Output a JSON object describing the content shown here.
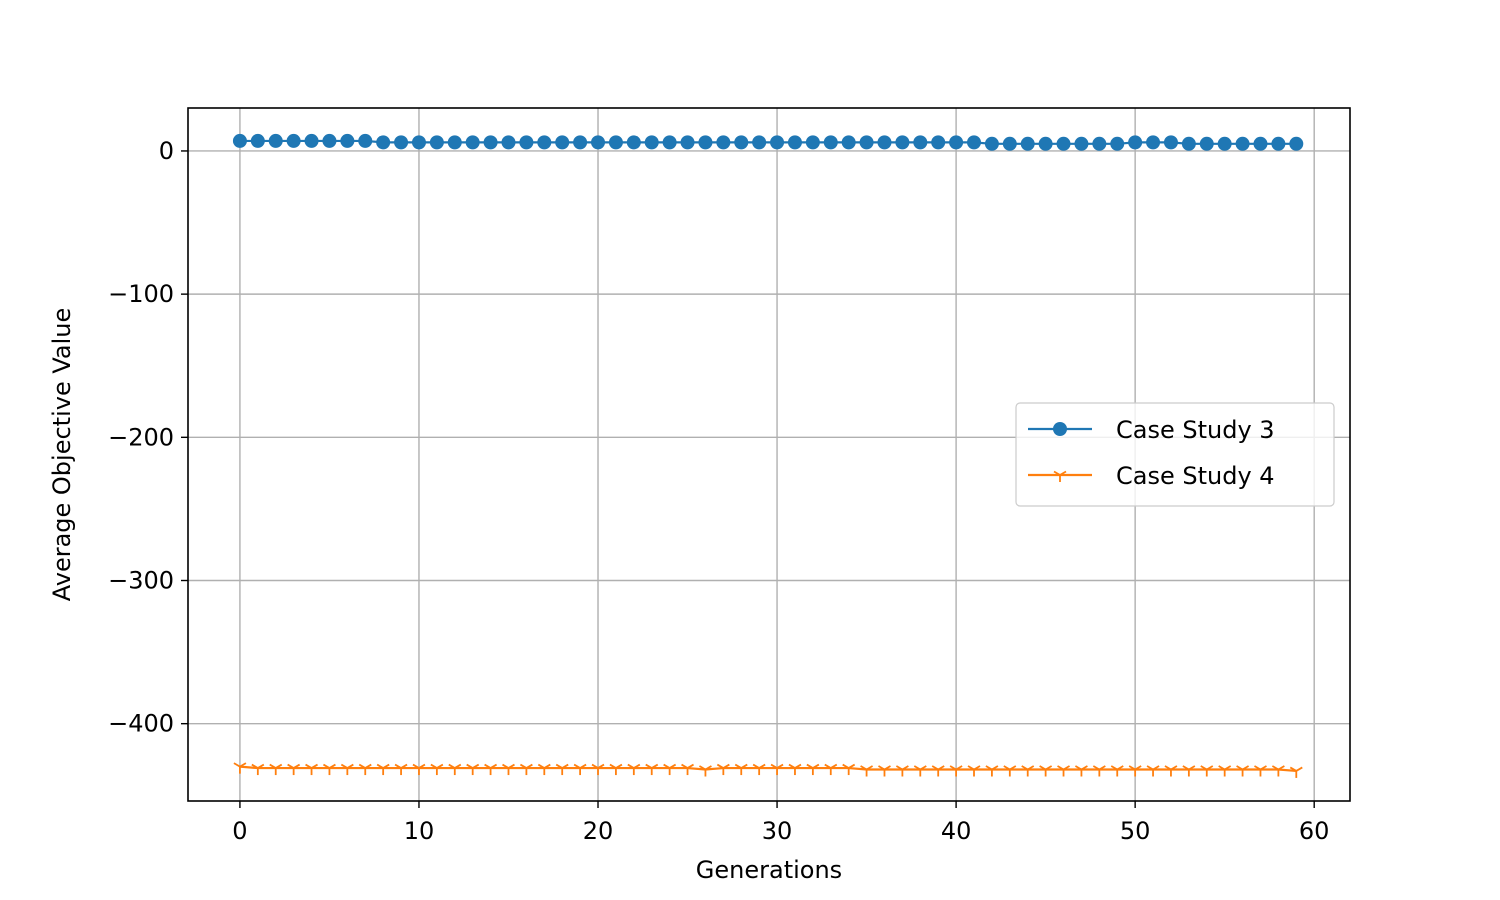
{
  "chart_data": {
    "type": "line",
    "title": "",
    "xlabel": "Generations",
    "ylabel": "Average Objective Value",
    "xlim": [
      -2.9,
      62
    ],
    "ylim": [
      -454,
      30
    ],
    "xticks": [
      0,
      10,
      20,
      30,
      40,
      50,
      60
    ],
    "yticks": [
      0,
      -100,
      -200,
      -300,
      -400
    ],
    "ytick_labels": [
      "0",
      "−100",
      "−200",
      "−300",
      "−400"
    ],
    "grid": true,
    "legend_position": "center-right",
    "series": [
      {
        "name": "Case Study 3",
        "color": "#1f77b4",
        "marker": "circle",
        "x": [
          0,
          1,
          2,
          3,
          4,
          5,
          6,
          7,
          8,
          9,
          10,
          11,
          12,
          13,
          14,
          15,
          16,
          17,
          18,
          19,
          20,
          21,
          22,
          23,
          24,
          25,
          26,
          27,
          28,
          29,
          30,
          31,
          32,
          33,
          34,
          35,
          36,
          37,
          38,
          39,
          40,
          41,
          42,
          43,
          44,
          45,
          46,
          47,
          48,
          49,
          50,
          51,
          52,
          53,
          54,
          55,
          56,
          57,
          58,
          59
        ],
        "values": [
          7,
          7,
          7,
          7,
          7,
          7,
          7,
          7,
          6,
          6,
          6,
          6,
          6,
          6,
          6,
          6,
          6,
          6,
          6,
          6,
          6,
          6,
          6,
          6,
          6,
          6,
          6,
          6,
          6,
          6,
          6,
          6,
          6,
          6,
          6,
          6,
          6,
          6,
          6,
          6,
          6,
          6,
          5,
          5,
          5,
          5,
          5,
          5,
          5,
          5,
          6,
          6,
          6,
          5,
          5,
          5,
          5,
          5,
          5,
          5
        ]
      },
      {
        "name": "Case Study 4",
        "color": "#ff7f0e",
        "marker": "tri_down",
        "x": [
          0,
          1,
          2,
          3,
          4,
          5,
          6,
          7,
          8,
          9,
          10,
          11,
          12,
          13,
          14,
          15,
          16,
          17,
          18,
          19,
          20,
          21,
          22,
          23,
          24,
          25,
          26,
          27,
          28,
          29,
          30,
          31,
          32,
          33,
          34,
          35,
          36,
          37,
          38,
          39,
          40,
          41,
          42,
          43,
          44,
          45,
          46,
          47,
          48,
          49,
          50,
          51,
          52,
          53,
          54,
          55,
          56,
          57,
          58,
          59
        ],
        "values": [
          -430,
          -431,
          -431,
          -431,
          -431,
          -431,
          -431,
          -431,
          -431,
          -431,
          -431,
          -431,
          -431,
          -431,
          -431,
          -431,
          -431,
          -431,
          -431,
          -431,
          -431,
          -431,
          -431,
          -431,
          -431,
          -431,
          -432,
          -431,
          -431,
          -431,
          -431,
          -431,
          -431,
          -431,
          -431,
          -432,
          -432,
          -432,
          -432,
          -432,
          -432,
          -432,
          -432,
          -432,
          -432,
          -432,
          -432,
          -432,
          -432,
          -432,
          -432,
          -432,
          -432,
          -432,
          -432,
          -432,
          -432,
          -432,
          -432,
          -433
        ]
      }
    ]
  }
}
